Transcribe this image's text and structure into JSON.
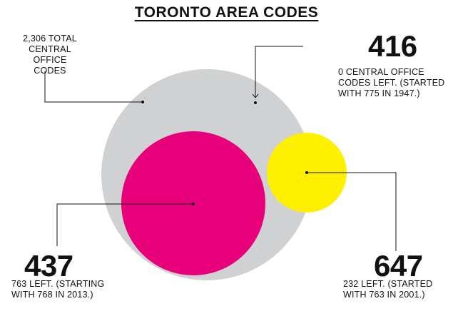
{
  "title": "TORONTO AREA CODES",
  "total": {
    "lines": [
      "2,306 TOTAL",
      "CENTRAL",
      "OFFICE CODES"
    ]
  },
  "codes": {
    "c416": {
      "code": "416",
      "lines": [
        "0 CENTRAL OFFICE",
        "CODES LEFT. (STARTED",
        "WITH 775 IN 1947.)"
      ],
      "color": "#cfd1d3",
      "left": 0,
      "started": 775
    },
    "c437": {
      "code": "437",
      "lines": [
        "763 LEFT. (STARTING",
        "WITH 768 IN 2013.)"
      ],
      "color": "#e8007a",
      "left": 763,
      "started": 768
    },
    "c647": {
      "code": "647",
      "lines": [
        "232 LEFT. (STARTED",
        "WITH 763 IN 2001.)"
      ],
      "color": "#fff000",
      "left": 232,
      "started": 763
    }
  }
}
